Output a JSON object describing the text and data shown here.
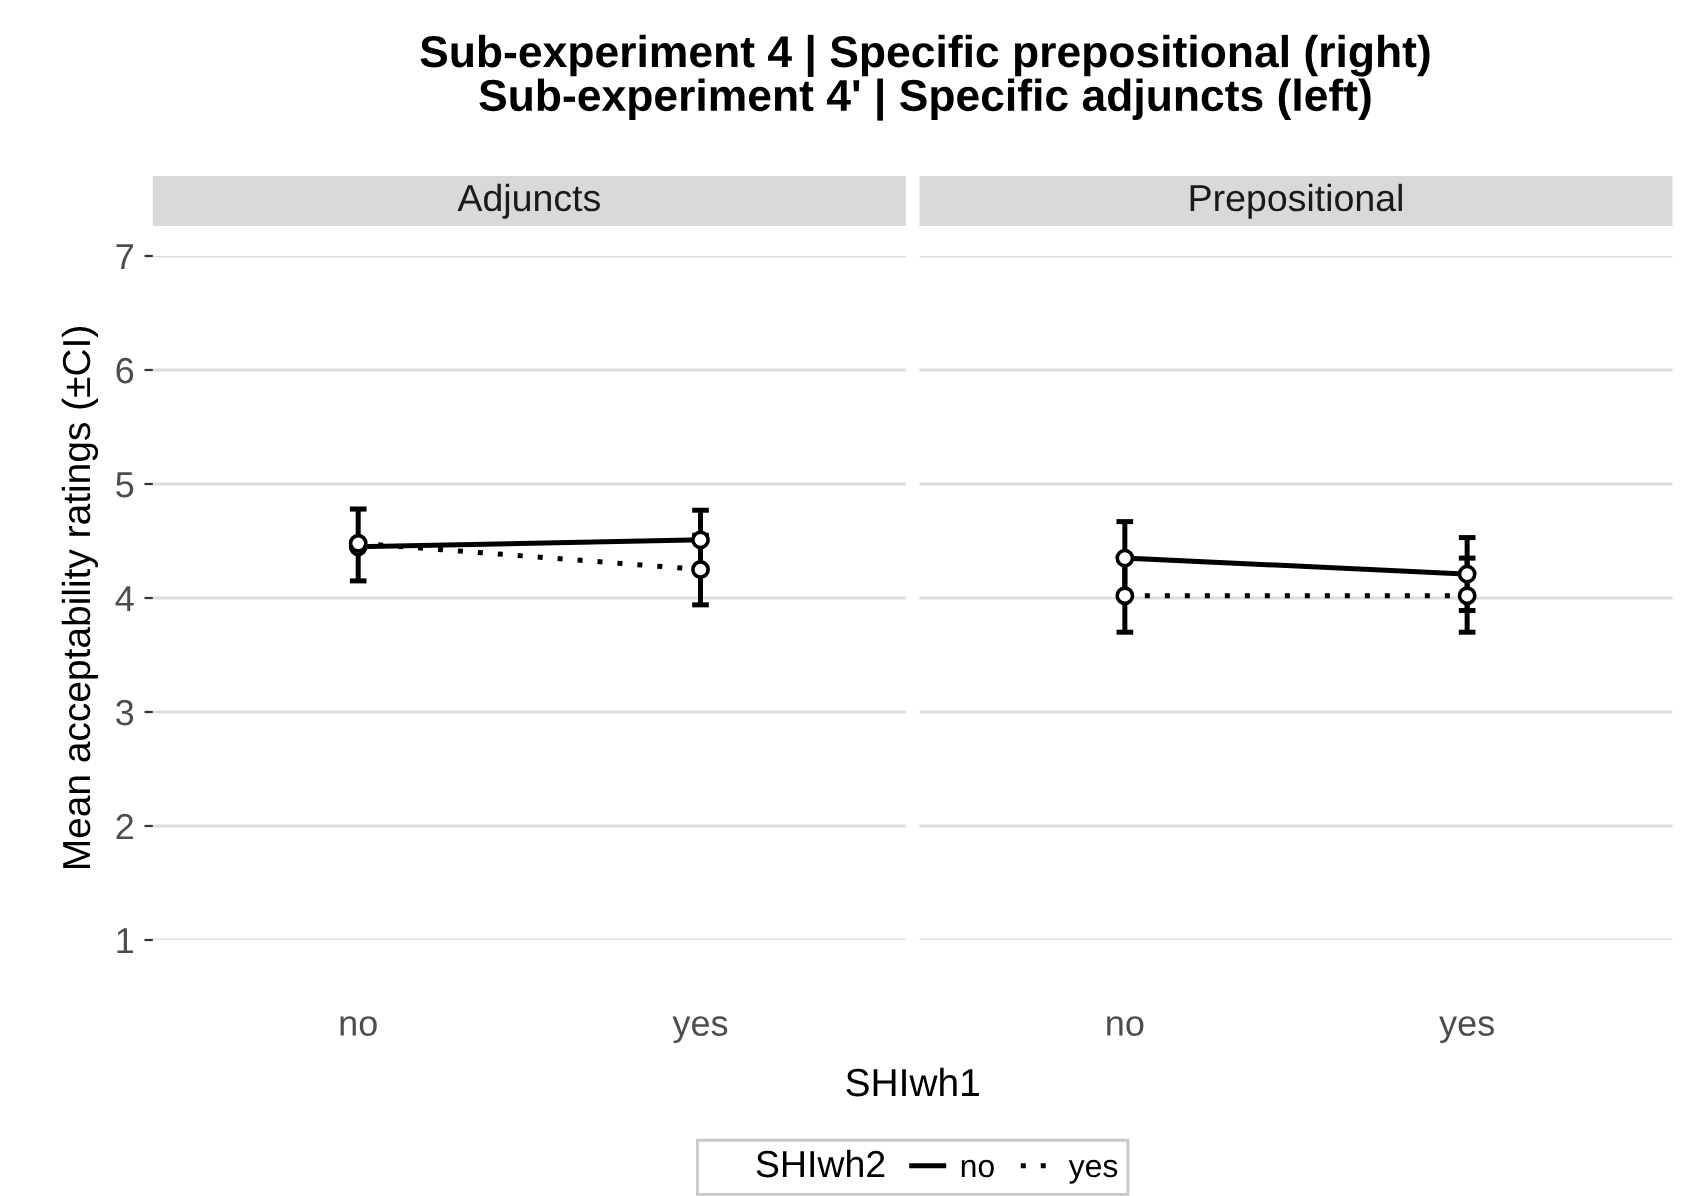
{
  "chart_data": [
    {
      "type": "line",
      "title": "Adjuncts",
      "annotations": [
        "Sub-experiment 4 | Specific prepositional (right)\nSub-experiment 4' | Specific adjuncts (left)"
      ],
      "xlabel": "SHIwh1",
      "ylabel": "Mean acceptability ratings (±CI)",
      "legend_title": "SHIwh2",
      "legend": "bottom",
      "categories": [
        "no",
        "yes"
      ],
      "ylim": [
        1,
        7
      ],
      "yticks": [
        1,
        2,
        3,
        4,
        5,
        6,
        7
      ],
      "grid": "y",
      "marker": "circle",
      "series": [
        {
          "name": "no",
          "color": "#000000",
          "line_style": "solid",
          "values": [
            4.45,
            4.51
          ],
          "errors": [
            [
              4.15,
              4.78
            ],
            [
              4.25,
              4.77
            ]
          ]
        },
        {
          "name": "yes",
          "color": "#000000",
          "line_style": "dotted",
          "values": [
            4.48,
            4.25
          ],
          "errors": [
            null,
            [
              3.94,
              4.55
            ]
          ]
        }
      ]
    },
    {
      "type": "line",
      "title": "Prepositional",
      "categories": [
        "no",
        "yes"
      ],
      "ylim": [
        1,
        7
      ],
      "yticks": [
        1,
        2,
        3,
        4,
        5,
        6,
        7
      ],
      "grid": "y",
      "marker": "circle",
      "tick_labels": "x",
      "series": [
        {
          "color": "#000000",
          "line_style": "solid",
          "values": [
            4.35,
            4.21
          ],
          "errors": [
            [
              4.03,
              4.67
            ],
            [
              3.89,
              4.53
            ]
          ]
        },
        {
          "color": "#000000",
          "line_style": "dotted",
          "values": [
            4.02,
            4.02
          ],
          "errors": [
            [
              3.7,
              4.35
            ],
            [
              3.7,
              4.35
            ]
          ]
        }
      ]
    }
  ]
}
